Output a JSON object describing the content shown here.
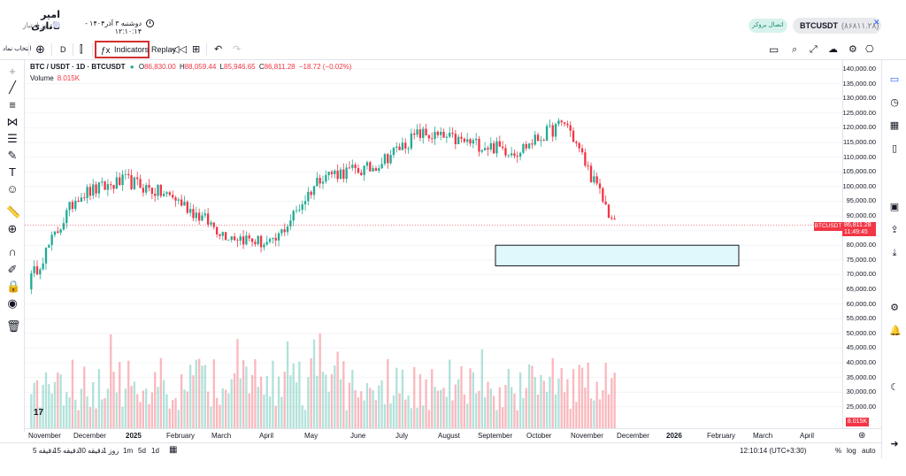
{
  "header": {
    "user_name": "امیر تاتاری",
    "user_sub": "۲۹ روز امتیاز",
    "datetime": "دوشنبه ۳ آذر۱۴۰۴ - ۱۲:۱۰:۱۴",
    "connect_label": "اتصال بروکر",
    "account_symbol": "BTCUSDT",
    "account_id": "(۸۶۸۱۱.۲۸)",
    "ad_close": "✕"
  },
  "toolbar": {
    "add_label": "انتخاب نماد",
    "interval": "D",
    "indicators_label": "Indicators",
    "replay_label": "Replay"
  },
  "legend": {
    "symbol": "BTC / USDT · 1D · BTCUSDT",
    "o_label": "O",
    "o_value": "86,830.00",
    "h_label": "H",
    "h_value": "88,059.44",
    "l_label": "L",
    "l_value": "85,946.65",
    "c_label": "C",
    "c_value": "86,811.28",
    "change": "−18.72 (−0.02%)",
    "volume_label": "Volume",
    "volume_value": "8.015K"
  },
  "price_axis": {
    "ticks": [
      "140,000.00",
      "135,000.00",
      "130,000.00",
      "125,000.00",
      "120,000.00",
      "115,000.00",
      "110,000.00",
      "105,000.00",
      "100,000.00",
      "95,000.00",
      "90,000.00",
      "85,000.00",
      "80,000.00",
      "75,000.00",
      "70,000.00",
      "65,000.00",
      "60,000.00",
      "55,000.00",
      "50,000.00",
      "45,000.00",
      "40,000.00",
      "35,000.00",
      "30,000.00",
      "25,000.00"
    ],
    "last_price": "86,811.28",
    "countdown": "11:49:45",
    "symbol_tag": "BTCUSDT",
    "volume_tag": "8.015K"
  },
  "time_axis": {
    "ticks": [
      "November",
      "December",
      "2025",
      "February",
      "March",
      "April",
      "May",
      "June",
      "July",
      "August",
      "September",
      "October",
      "November",
      "December",
      "2026",
      "February",
      "March",
      "April"
    ]
  },
  "bottombar": {
    "ranges": [
      "5 دقیقه",
      "15 دقیقه",
      "30 دقیقه",
      "1 روز",
      "1m",
      "5d",
      "1d"
    ],
    "clock": "12:10:14 (UTC+3:30)",
    "percent": "%",
    "log": "log",
    "auto": "auto"
  },
  "colors": {
    "up": "#22ab94",
    "down": "#f23645",
    "box_fill": "#e0f7fb"
  },
  "chart_data": {
    "type": "candlestick",
    "x": [
      "2024-11",
      "2024-12",
      "2025-01",
      "2025-02",
      "2025-03",
      "2025-04",
      "2025-05",
      "2025-06",
      "2025-07",
      "2025-08",
      "2025-09",
      "2025-10",
      "2025-11"
    ],
    "close": [
      67000,
      97000,
      102000,
      96000,
      84000,
      80000,
      104000,
      106000,
      118000,
      115000,
      112000,
      122000,
      86811
    ],
    "ylim": [
      25000,
      140000
    ],
    "annotation": {
      "type": "rectangle",
      "price_range": [
        73000,
        80000
      ]
    }
  }
}
